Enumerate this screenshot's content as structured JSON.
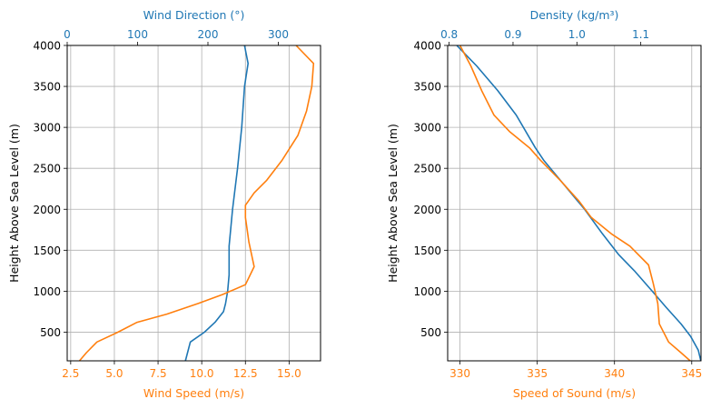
{
  "colors": {
    "blue": "#1f77b4",
    "orange": "#ff7f0e",
    "grid": "#b0b0b0",
    "axis": "#000000",
    "background": "#ffffff"
  },
  "chart_data": [
    {
      "type": "line",
      "grid": true,
      "y_axis": {
        "label": "Height Above Sea Level (m)",
        "range": [
          150,
          4000
        ],
        "ticks": [
          500,
          1000,
          1500,
          2000,
          2500,
          3000,
          3500,
          4000
        ],
        "tick_labels": [
          "500",
          "1000",
          "1500",
          "2000",
          "2500",
          "3000",
          "3500",
          "4000"
        ]
      },
      "x_bottom": {
        "label": "Wind Speed (m/s)",
        "color": "#ff7f0e",
        "range": [
          2.3,
          16.8
        ],
        "ticks": [
          2.5,
          5.0,
          7.5,
          10.0,
          12.5,
          15.0
        ],
        "tick_labels": [
          "2.5",
          "5.0",
          "7.5",
          "10.0",
          "12.5",
          "15.0"
        ]
      },
      "x_top": {
        "label": "Wind Direction (°)",
        "color": "#1f77b4",
        "range": [
          0,
          360
        ],
        "ticks": [
          0,
          100,
          200,
          300
        ],
        "tick_labels": [
          "0",
          "100",
          "200",
          "300"
        ]
      },
      "series": [
        {
          "axis": "top",
          "color": "#1f77b4",
          "points": [
            [
              168,
              150
            ],
            [
              175,
              380
            ],
            [
              195,
              500
            ],
            [
              210,
              620
            ],
            [
              222,
              750
            ],
            [
              225,
              850
            ],
            [
              228,
              1000
            ],
            [
              230,
              1200
            ],
            [
              230,
              1550
            ],
            [
              235,
              2000
            ],
            [
              242,
              2500
            ],
            [
              248,
              3000
            ],
            [
              252,
              3500
            ],
            [
              257,
              3780
            ],
            [
              252,
              4000
            ]
          ]
        },
        {
          "axis": "bottom",
          "color": "#ff7f0e",
          "points": [
            [
              3.0,
              150
            ],
            [
              3.4,
              250
            ],
            [
              4.0,
              380
            ],
            [
              5.2,
              500
            ],
            [
              6.3,
              620
            ],
            [
              8.0,
              720
            ],
            [
              9.8,
              850
            ],
            [
              11.2,
              960
            ],
            [
              12.5,
              1080
            ],
            [
              13.0,
              1300
            ],
            [
              12.7,
              1600
            ],
            [
              12.5,
              1900
            ],
            [
              12.5,
              2050
            ],
            [
              13.0,
              2200
            ],
            [
              13.7,
              2350
            ],
            [
              14.6,
              2600
            ],
            [
              15.5,
              2900
            ],
            [
              16.0,
              3200
            ],
            [
              16.3,
              3500
            ],
            [
              16.4,
              3780
            ],
            [
              15.4,
              4000
            ]
          ]
        }
      ]
    },
    {
      "type": "line",
      "grid": true,
      "y_axis": {
        "label": "Height Above Sea Level (m)",
        "range": [
          150,
          4000
        ],
        "ticks": [
          500,
          1000,
          1500,
          2000,
          2500,
          3000,
          3500,
          4000
        ],
        "tick_labels": [
          "500",
          "1000",
          "1500",
          "2000",
          "2500",
          "3000",
          "3500",
          "4000"
        ]
      },
      "x_bottom": {
        "label": "Speed of Sound (m/s)",
        "color": "#ff7f0e",
        "range": [
          329.2,
          345.6
        ],
        "ticks": [
          330,
          335,
          340,
          345
        ],
        "tick_labels": [
          "330",
          "335",
          "340",
          "345"
        ]
      },
      "x_top": {
        "label": "Density (kg/m³)",
        "color": "#1f77b4",
        "range": [
          0.7977,
          1.1943
        ],
        "ticks": [
          0.8,
          0.9,
          1.0,
          1.1
        ],
        "tick_labels": [
          "0.8",
          "0.9",
          "1.0",
          "1.1"
        ]
      },
      "series": [
        {
          "axis": "top",
          "color": "#1f77b4",
          "points": [
            [
              0.812,
              4000
            ],
            [
              0.843,
              3750
            ],
            [
              0.876,
              3450
            ],
            [
              0.905,
              3150
            ],
            [
              0.935,
              2750
            ],
            [
              0.948,
              2600
            ],
            [
              0.98,
              2300
            ],
            [
              1.012,
              2000
            ],
            [
              1.04,
              1700
            ],
            [
              1.065,
              1450
            ],
            [
              1.09,
              1250
            ],
            [
              1.118,
              1000
            ],
            [
              1.14,
              800
            ],
            [
              1.163,
              600
            ],
            [
              1.178,
              450
            ],
            [
              1.19,
              280
            ],
            [
              1.194,
              150
            ]
          ]
        },
        {
          "axis": "bottom",
          "color": "#ff7f0e",
          "points": [
            [
              330.0,
              4000
            ],
            [
              330.7,
              3750
            ],
            [
              331.4,
              3450
            ],
            [
              332.2,
              3150
            ],
            [
              333.2,
              2950
            ],
            [
              334.5,
              2750
            ],
            [
              335.2,
              2600
            ],
            [
              336.5,
              2350
            ],
            [
              337.7,
              2100
            ],
            [
              338.5,
              1900
            ],
            [
              339.8,
              1700
            ],
            [
              341.0,
              1550
            ],
            [
              342.2,
              1320
            ],
            [
              342.5,
              1100
            ],
            [
              342.8,
              850
            ],
            [
              342.9,
              600
            ],
            [
              343.5,
              380
            ],
            [
              344.3,
              250
            ],
            [
              344.9,
              150
            ]
          ]
        }
      ]
    }
  ]
}
